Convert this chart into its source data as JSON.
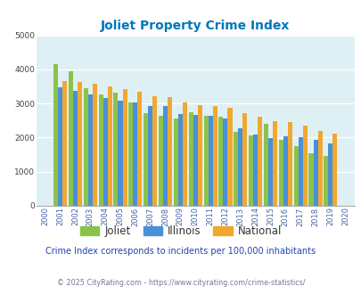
{
  "title": "Joliet Property Crime Index",
  "years": [
    2000,
    2001,
    2002,
    2003,
    2004,
    2005,
    2006,
    2007,
    2008,
    2009,
    2010,
    2011,
    2012,
    2013,
    2014,
    2015,
    2016,
    2017,
    2018,
    2019,
    2020
  ],
  "joliet": [
    0,
    4150,
    3940,
    3440,
    3270,
    3310,
    3040,
    2720,
    2640,
    2560,
    2750,
    2640,
    2600,
    2160,
    2060,
    2400,
    1940,
    1760,
    1550,
    1460,
    0
  ],
  "illinois": [
    0,
    3470,
    3370,
    3270,
    3160,
    3080,
    3030,
    2920,
    2930,
    2680,
    2670,
    2640,
    2570,
    2260,
    2080,
    1980,
    2040,
    2020,
    1930,
    1840,
    0
  ],
  "national": [
    0,
    3670,
    3620,
    3590,
    3510,
    3430,
    3340,
    3220,
    3190,
    3040,
    2960,
    2920,
    2880,
    2720,
    2600,
    2490,
    2460,
    2360,
    2190,
    2110,
    0
  ],
  "joliet_color": "#8bc34a",
  "illinois_color": "#4a90d9",
  "national_color": "#f0a830",
  "bg_color": "#dff0f5",
  "title_color": "#0077bb",
  "ylim": [
    0,
    5000
  ],
  "yticks": [
    0,
    1000,
    2000,
    3000,
    4000,
    5000
  ],
  "subtitle": "Crime Index corresponds to incidents per 100,000 inhabitants",
  "footer": "© 2025 CityRating.com - https://www.cityrating.com/crime-statistics/",
  "subtitle_color": "#2244aa",
  "footer_color": "#777799"
}
